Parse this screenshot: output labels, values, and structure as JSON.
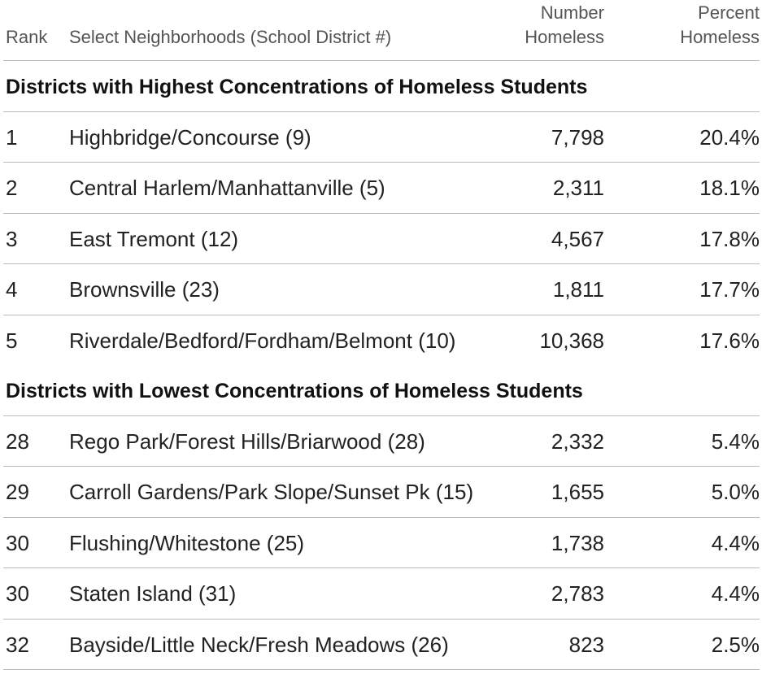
{
  "header": {
    "columns": [
      "Rank",
      "Select Neighborhoods (School District #)",
      "Number Homeless",
      "Percent Homeless"
    ]
  },
  "sections": [
    {
      "title": "Districts with Highest Concentrations of Homeless Students",
      "rows": [
        [
          "1",
          "Highbridge/Concourse (9)",
          "7,798",
          "20.4%"
        ],
        [
          "2",
          "Central Harlem/Manhattanville (5)",
          "2,311",
          "18.1%"
        ],
        [
          "3",
          "East Tremont (12)",
          "4,567",
          "17.8%"
        ],
        [
          "4",
          "Brownsville (23)",
          "1,811",
          "17.7%"
        ],
        [
          "5",
          "Riverdale/Bedford/Fordham/Belmont (10)",
          "10,368",
          "17.6%"
        ]
      ]
    },
    {
      "title": "Districts with Lowest Concentrations of Homeless Students",
      "rows": [
        [
          "28",
          "Rego Park/Forest Hills/Briarwood (28)",
          "2,332",
          "5.4%"
        ],
        [
          "29",
          "Carroll Gardens/Park Slope/Sunset Pk (15)",
          "1,655",
          "5.0%"
        ],
        [
          "30",
          "Flushing/Whitestone (25)",
          "1,738",
          "4.4%"
        ],
        [
          "30",
          "Staten Island (31)",
          "2,783",
          "4.4%"
        ],
        [
          "32",
          "Bayside/Little Neck/Fresh Meadows (26)",
          "823",
          "2.5%"
        ]
      ]
    }
  ]
}
